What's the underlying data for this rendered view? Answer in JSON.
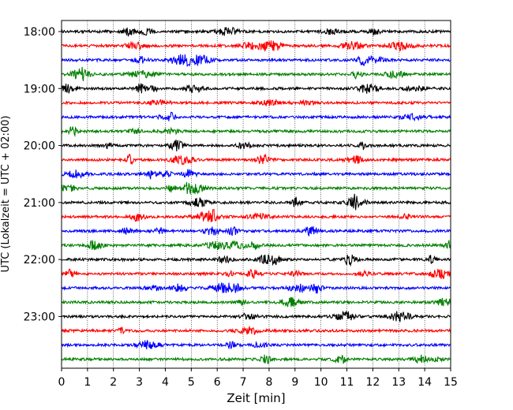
{
  "chart_data": {
    "type": "line",
    "title": "",
    "xlabel": "Zeit  [min]",
    "ylabel": "UTC (Lokalzeit = UTC + 02:00)",
    "xlim": [
      0,
      15
    ],
    "xticks": [
      "0",
      "1",
      "2",
      "3",
      "4",
      "5",
      "6",
      "7",
      "8",
      "9",
      "10",
      "11",
      "12",
      "13",
      "14",
      "15"
    ],
    "yticks": [
      {
        "label": "18:00",
        "trace": 0
      },
      {
        "label": "19:00",
        "trace": 4
      },
      {
        "label": "20:00",
        "trace": 8
      },
      {
        "label": "21:00",
        "trace": 12
      },
      {
        "label": "22:00",
        "trace": 16
      },
      {
        "label": "23:00",
        "trace": 20
      }
    ],
    "grid": {
      "x": true,
      "y": false
    },
    "traces": [
      {
        "start": "18:00",
        "color": "#000000"
      },
      {
        "start": "18:15",
        "color": "#ff0000"
      },
      {
        "start": "18:30",
        "color": "#0000ff"
      },
      {
        "start": "18:45",
        "color": "#008000"
      },
      {
        "start": "19:00",
        "color": "#000000"
      },
      {
        "start": "19:15",
        "color": "#ff0000"
      },
      {
        "start": "19:30",
        "color": "#0000ff"
      },
      {
        "start": "19:45",
        "color": "#008000"
      },
      {
        "start": "20:00",
        "color": "#000000"
      },
      {
        "start": "20:15",
        "color": "#ff0000"
      },
      {
        "start": "20:30",
        "color": "#0000ff"
      },
      {
        "start": "20:45",
        "color": "#008000"
      },
      {
        "start": "21:00",
        "color": "#000000"
      },
      {
        "start": "21:15",
        "color": "#ff0000"
      },
      {
        "start": "21:30",
        "color": "#0000ff"
      },
      {
        "start": "21:45",
        "color": "#008000"
      },
      {
        "start": "22:00",
        "color": "#000000"
      },
      {
        "start": "22:15",
        "color": "#ff0000"
      },
      {
        "start": "22:30",
        "color": "#0000ff"
      },
      {
        "start": "22:45",
        "color": "#008000"
      },
      {
        "start": "23:00",
        "color": "#000000"
      },
      {
        "start": "23:15",
        "color": "#ff0000"
      },
      {
        "start": "23:30",
        "color": "#0000ff"
      },
      {
        "start": "23:45",
        "color": "#008000"
      }
    ]
  }
}
